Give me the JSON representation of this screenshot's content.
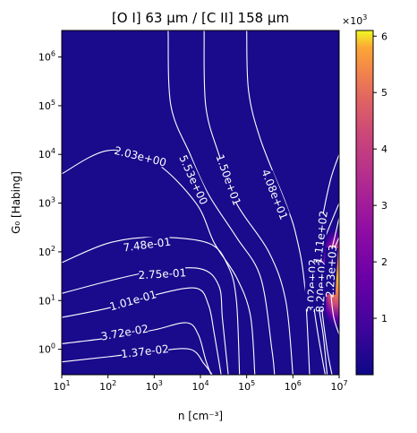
{
  "chart_data": {
    "type": "heatmap",
    "title": "[O I] 63 μm / [C II] 158 μm",
    "xlabel": "n [cm⁻³]",
    "ylabel": "G₀ [Habing]",
    "xscale": "log",
    "yscale": "log",
    "xlim": [
      10,
      10000000
    ],
    "ylim": [
      0.3,
      3500000
    ],
    "x_ticks": [
      {
        "value": 10,
        "mant": "10",
        "exp": "1"
      },
      {
        "value": 100,
        "mant": "10",
        "exp": "2"
      },
      {
        "value": 1000,
        "mant": "10",
        "exp": "3"
      },
      {
        "value": 10000,
        "mant": "10",
        "exp": "4"
      },
      {
        "value": 100000,
        "mant": "10",
        "exp": "5"
      },
      {
        "value": 1000000,
        "mant": "10",
        "exp": "6"
      },
      {
        "value": 10000000,
        "mant": "10",
        "exp": "7"
      }
    ],
    "y_ticks": [
      {
        "value": 1,
        "mant": "10",
        "exp": "0"
      },
      {
        "value": 10,
        "mant": "10",
        "exp": "1"
      },
      {
        "value": 100,
        "mant": "10",
        "exp": "2"
      },
      {
        "value": 1000,
        "mant": "10",
        "exp": "3"
      },
      {
        "value": 10000,
        "mant": "10",
        "exp": "4"
      },
      {
        "value": 100000,
        "mant": "10",
        "exp": "5"
      },
      {
        "value": 1000000,
        "mant": "10",
        "exp": "6"
      }
    ],
    "colormap": "plasma",
    "colorbar": {
      "min": 0,
      "max": 6100,
      "ticks": [
        1000,
        2000,
        3000,
        4000,
        5000,
        6000
      ],
      "tick_labels": [
        "1",
        "2",
        "3",
        "4",
        "5",
        "6"
      ],
      "multiplier_mant": "×10",
      "multiplier_exp": "3"
    },
    "contours": [
      {
        "level": "1.37e-02",
        "label_at": [
          630,
          0.9
        ],
        "path": [
          [
            10,
            0.55
          ],
          [
            100,
            0.7
          ],
          [
            1000,
            0.9
          ],
          [
            6000,
            1.0
          ],
          [
            12000,
            0.5
          ],
          [
            18000,
            0.3
          ]
        ]
      },
      {
        "level": "3.72e-02",
        "label_at": [
          230,
          2.2
        ],
        "path": [
          [
            10,
            1.3
          ],
          [
            100,
            1.7
          ],
          [
            1000,
            2.5
          ],
          [
            5000,
            3.5
          ],
          [
            9000,
            2.0
          ],
          [
            13000,
            0.6
          ],
          [
            17000,
            0.3
          ]
        ]
      },
      {
        "level": "1.01e-01",
        "label_at": [
          350,
          10
        ],
        "path": [
          [
            10,
            4.5
          ],
          [
            100,
            7
          ],
          [
            1000,
            13
          ],
          [
            8000,
            18
          ],
          [
            15000,
            8
          ],
          [
            20000,
            2
          ],
          [
            28000,
            0.3
          ]
        ]
      },
      {
        "level": "2.75e-01",
        "label_at": [
          1500,
          35
        ],
        "path": [
          [
            10,
            14
          ],
          [
            100,
            25
          ],
          [
            1000,
            40
          ],
          [
            10000,
            45
          ],
          [
            25000,
            20
          ],
          [
            30000,
            4
          ],
          [
            40000,
            0.3
          ]
        ]
      },
      {
        "level": "7.48e-01",
        "label_at": [
          700,
          140
        ],
        "path": [
          [
            10,
            60
          ],
          [
            100,
            150
          ],
          [
            1000,
            200
          ],
          [
            15000,
            150
          ],
          [
            40000,
            50
          ],
          [
            60000,
            10
          ],
          [
            70000,
            0.3
          ]
        ]
      },
      {
        "level": "2.03e+00",
        "label_at": [
          500,
          9000
        ],
        "path": [
          [
            10,
            4000
          ],
          [
            100,
            12000
          ],
          [
            1000,
            7000
          ],
          [
            8000,
            1000
          ],
          [
            20000,
            150
          ],
          [
            60000,
            30
          ],
          [
            120000,
            5
          ],
          [
            150000,
            0.3
          ]
        ]
      },
      {
        "level": "5.53e+00",
        "label_at": [
          7000,
          3000
        ],
        "path": [
          [
            2000,
            3500000
          ],
          [
            2300,
            100000
          ],
          [
            6000,
            10000
          ],
          [
            15000,
            1500
          ],
          [
            60000,
            200
          ],
          [
            200000,
            30
          ],
          [
            350000,
            1
          ],
          [
            400000,
            0.3
          ]
        ]
      },
      {
        "level": "1.50e+01",
        "label_at": [
          40000,
          3000
        ],
        "path": [
          [
            12000,
            3500000
          ],
          [
            13000,
            100000
          ],
          [
            25000,
            10000
          ],
          [
            60000,
            1000
          ],
          [
            300000,
            100
          ],
          [
            700000,
            10
          ],
          [
            1000000,
            0.3
          ]
        ]
      },
      {
        "level": "4.08e+01",
        "label_at": [
          400000,
          1500
        ],
        "path": [
          [
            100000,
            3500000
          ],
          [
            110000,
            200000
          ],
          [
            200000,
            20000
          ],
          [
            700000,
            1000
          ],
          [
            1200000,
            200
          ],
          [
            1800000,
            20
          ],
          [
            2300000,
            0.3
          ]
        ]
      },
      {
        "level": "1.11e+02",
        "label_at": [
          4000000,
          200
        ],
        "path": [
          [
            10000000,
            10000
          ],
          [
            6500000,
            3000
          ],
          [
            4200000,
            400
          ],
          [
            3300000,
            60
          ],
          [
            3500000,
            10
          ],
          [
            4500000,
            2
          ],
          [
            5500000,
            0.3
          ]
        ]
      },
      {
        "level": "3.02e+02",
        "label_at": [
          2600000,
          20
        ],
        "path": [
          [
            10000000,
            1000
          ],
          [
            5000000,
            200
          ],
          [
            3000000,
            50
          ],
          [
            2800000,
            10
          ],
          [
            3500000,
            2
          ],
          [
            5000000,
            0.3
          ]
        ]
      },
      {
        "level": "8.20e+02",
        "label_at": [
          4100000,
          20
        ],
        "path": [
          [
            10000000,
            500
          ],
          [
            7000000,
            120
          ],
          [
            4500000,
            30
          ],
          [
            4200000,
            8
          ],
          [
            5500000,
            1
          ],
          [
            7000000,
            0.3
          ]
        ]
      },
      {
        "level": "2.23e+03",
        "label_at": [
          6800000,
          40
        ],
        "path": [
          [
            10000000,
            200
          ],
          [
            7000000,
            80
          ],
          [
            6500000,
            25
          ],
          [
            7500000,
            5
          ],
          [
            10000000,
            2
          ]
        ]
      }
    ]
  }
}
